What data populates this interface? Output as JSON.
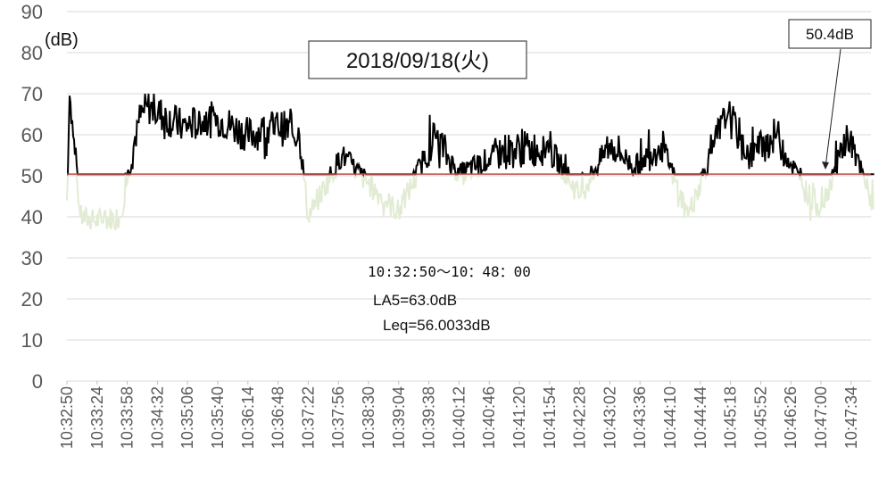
{
  "chart_data": {
    "type": "line",
    "title": "2018/09/18(火)",
    "ylabel": "(dB)",
    "ylim": [
      0,
      90
    ],
    "yticks": [
      "0",
      "10",
      "20",
      "30",
      "40",
      "50",
      "60",
      "70",
      "80",
      "90"
    ],
    "xticks": [
      "10:32:50",
      "10:33:24",
      "10:33:58",
      "10:34:32",
      "10:35:06",
      "10:35:40",
      "10:36:14",
      "10:36:48",
      "10:37:22",
      "10:37:56",
      "10:38:30",
      "10:39:04",
      "10:39:38",
      "10:40:12",
      "10:40:46",
      "10:41:20",
      "10:41:54",
      "10:42:28",
      "10:43:02",
      "10:43:36",
      "10:44:10",
      "10:44:44",
      "10:45:18",
      "10:45:52",
      "10:46:26",
      "10:47:00",
      "10:47:34"
    ],
    "grid": true,
    "threshold": {
      "value": 50.4,
      "label": "50.4dB",
      "color": "#c0504d"
    },
    "series_colors": {
      "above": "#000000",
      "below": "#e2ecd4"
    },
    "annotations": [
      {
        "id": "period",
        "text": "10:32:50〜10：48：00"
      },
      {
        "id": "la5",
        "text": "LA5=63.0dB"
      },
      {
        "id": "leq",
        "text": "Leq=56.0033dB"
      }
    ],
    "key_points": [
      {
        "time": "10:32:50",
        "value": 44
      },
      {
        "time": "10:32:53",
        "value": 69.5
      },
      {
        "time": "10:33:05",
        "value": 40
      },
      {
        "time": "10:33:20",
        "value": 39
      },
      {
        "time": "10:33:50",
        "value": 40
      },
      {
        "time": "10:34:05",
        "value": 57
      },
      {
        "time": "10:34:10",
        "value": 63
      },
      {
        "time": "10:34:20",
        "value": 67
      },
      {
        "time": "10:35:00",
        "value": 62
      },
      {
        "time": "10:35:40",
        "value": 64
      },
      {
        "time": "10:36:14",
        "value": 60
      },
      {
        "time": "10:36:48",
        "value": 62
      },
      {
        "time": "10:37:12",
        "value": 60
      },
      {
        "time": "10:37:22",
        "value": 40
      },
      {
        "time": "10:38:00",
        "value": 55
      },
      {
        "time": "10:38:30",
        "value": 48
      },
      {
        "time": "10:39:04",
        "value": 41
      },
      {
        "time": "10:39:45",
        "value": 60
      },
      {
        "time": "10:40:12",
        "value": 50
      },
      {
        "time": "10:41:00",
        "value": 56
      },
      {
        "time": "10:41:54",
        "value": 57
      },
      {
        "time": "10:42:28",
        "value": 45
      },
      {
        "time": "10:43:02",
        "value": 58
      },
      {
        "time": "10:43:30",
        "value": 52
      },
      {
        "time": "10:44:00",
        "value": 58
      },
      {
        "time": "10:44:30",
        "value": 40
      },
      {
        "time": "10:45:00",
        "value": 58
      },
      {
        "time": "10:45:15",
        "value": 65
      },
      {
        "time": "10:45:40",
        "value": 55
      },
      {
        "time": "10:46:10",
        "value": 60
      },
      {
        "time": "10:46:40",
        "value": 47
      },
      {
        "time": "10:47:00",
        "value": 42
      },
      {
        "time": "10:47:30",
        "value": 60
      },
      {
        "time": "10:48:00",
        "value": 42
      }
    ]
  }
}
